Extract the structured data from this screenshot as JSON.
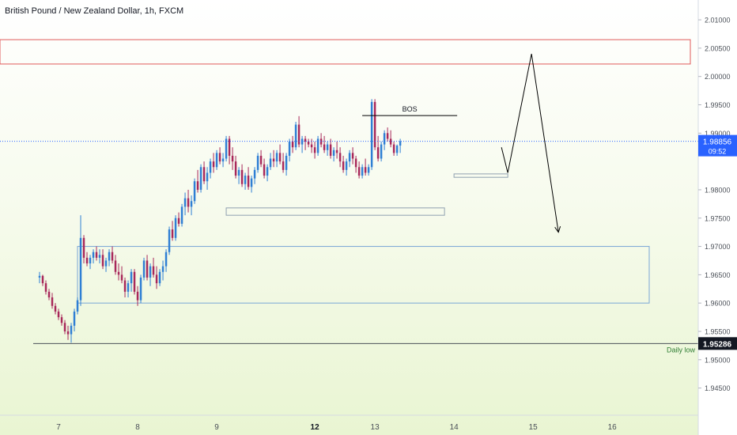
{
  "chart_title": "British Pound / New Zealand Dollar, 1h, FXCM",
  "chart_data": {
    "type": "candlestick",
    "symbol": "British Pound / New Zealand Dollar",
    "interval": "1h",
    "source": "FXCM",
    "ylim": [
      1.9402,
      2.0135
    ],
    "y_ticks": [
      {
        "value": 2.01,
        "label": "2.01000"
      },
      {
        "value": 2.005,
        "label": "2.00500"
      },
      {
        "value": 2.0,
        "label": "2.00000"
      },
      {
        "value": 1.995,
        "label": "1.99500"
      },
      {
        "value": 1.99,
        "label": "1.99000"
      },
      {
        "value": 1.98,
        "label": "1.98000"
      },
      {
        "value": 1.975,
        "label": "1.97500"
      },
      {
        "value": 1.97,
        "label": "1.97000"
      },
      {
        "value": 1.965,
        "label": "1.96500"
      },
      {
        "value": 1.96,
        "label": "1.96000"
      },
      {
        "value": 1.955,
        "label": "1.95500"
      },
      {
        "value": 1.95,
        "label": "1.95000"
      },
      {
        "value": 1.945,
        "label": "1.94500"
      }
    ],
    "x_ticks": [
      {
        "t": 6.0,
        "label": "7",
        "bold": false
      },
      {
        "t": 31.0,
        "label": "8",
        "bold": false
      },
      {
        "t": 56.0,
        "label": "9",
        "bold": false
      },
      {
        "t": 87.0,
        "label": "12",
        "bold": true
      },
      {
        "t": 106.0,
        "label": "13",
        "bold": false
      },
      {
        "t": 131.0,
        "label": "14",
        "bold": false
      },
      {
        "t": 156.0,
        "label": "15",
        "bold": false
      },
      {
        "t": 181.0,
        "label": "16",
        "bold": false
      }
    ],
    "x_range": [
      -12.5,
      208.2
    ],
    "current_price": {
      "value": 1.98856,
      "label": "1.98856",
      "countdown": "09:52",
      "color": "#2962ff"
    },
    "daily_low": {
      "value": 1.95286,
      "label": "1.95286",
      "text": "Daily low"
    },
    "bos": {
      "label": "BOS",
      "t_start": 102.0,
      "t_end": 132.0,
      "price": 1.9931
    },
    "up_color": "#2f7fd4",
    "down_color": "#a8285a",
    "zones": [
      {
        "kind": "supply",
        "t_start": -12.5,
        "t_end": 205.7,
        "top": 2.0065,
        "bottom": 2.0022,
        "color": "#e05a5a"
      },
      {
        "kind": "demand",
        "t_start": 12.0,
        "t_end": 192.7,
        "top": 1.97,
        "bottom": 1.96,
        "color": "#7aa6d6"
      },
      {
        "kind": "demand",
        "t_start": 59.0,
        "t_end": 128.0,
        "top": 1.9768,
        "bottom": 1.9755,
        "color": "#8fa0b0"
      },
      {
        "kind": "demand",
        "t_start": 131.0,
        "t_end": 148.0,
        "top": 1.9828,
        "bottom": 1.9822,
        "color": "#8fa0b0"
      }
    ],
    "projection": [
      {
        "t": 146.0,
        "price": 1.9875
      },
      {
        "t": 148.0,
        "price": 1.983
      },
      {
        "t": 155.5,
        "price": 2.004
      },
      {
        "t": 164.0,
        "price": 1.9725
      }
    ],
    "candles": [
      [
        1.9645,
        1.9655,
        1.9635,
        1.9648
      ],
      [
        1.9648,
        1.965,
        1.963,
        1.9635
      ],
      [
        1.9635,
        1.964,
        1.9615,
        1.962
      ],
      [
        1.962,
        1.9625,
        1.9605,
        1.961
      ],
      [
        1.961,
        1.9618,
        1.959,
        1.9595
      ],
      [
        1.9595,
        1.96,
        1.958,
        1.9585
      ],
      [
        1.9585,
        1.959,
        1.957,
        1.9575
      ],
      [
        1.9575,
        1.958,
        1.956,
        1.9565
      ],
      [
        1.9565,
        1.957,
        1.9545,
        1.955
      ],
      [
        1.955,
        1.956,
        1.9535,
        1.9545
      ],
      [
        1.9545,
        1.9565,
        1.953,
        1.956
      ],
      [
        1.956,
        1.959,
        1.955,
        1.9585
      ],
      [
        1.9585,
        1.961,
        1.958,
        1.9605
      ],
      [
        1.9605,
        1.9755,
        1.9595,
        1.9715
      ],
      [
        1.9715,
        1.972,
        1.967,
        1.968
      ],
      [
        1.968,
        1.969,
        1.9665,
        1.967
      ],
      [
        1.967,
        1.9685,
        1.966,
        1.968
      ],
      [
        1.968,
        1.9695,
        1.967,
        1.969
      ],
      [
        1.969,
        1.97,
        1.9675,
        1.968
      ],
      [
        1.968,
        1.9695,
        1.967,
        1.9685
      ],
      [
        1.9685,
        1.9695,
        1.966,
        1.9665
      ],
      [
        1.9665,
        1.968,
        1.9655,
        1.9675
      ],
      [
        1.9675,
        1.9695,
        1.9665,
        1.969
      ],
      [
        1.969,
        1.97,
        1.967,
        1.9675
      ],
      [
        1.9675,
        1.9685,
        1.965,
        1.9655
      ],
      [
        1.9655,
        1.967,
        1.964,
        1.965
      ],
      [
        1.965,
        1.9665,
        1.9635,
        1.964
      ],
      [
        1.964,
        1.9645,
        1.961,
        1.962
      ],
      [
        1.962,
        1.964,
        1.961,
        1.9635
      ],
      [
        1.9635,
        1.966,
        1.962,
        1.9655
      ],
      [
        1.9655,
        1.966,
        1.9615,
        1.962
      ],
      [
        1.962,
        1.963,
        1.9595,
        1.9605
      ],
      [
        1.9605,
        1.965,
        1.96,
        1.9645
      ],
      [
        1.9645,
        1.968,
        1.964,
        1.9675
      ],
      [
        1.9675,
        1.9685,
        1.964,
        1.9645
      ],
      [
        1.9645,
        1.967,
        1.963,
        1.9665
      ],
      [
        1.9665,
        1.968,
        1.9645,
        1.965
      ],
      [
        1.965,
        1.9665,
        1.9625,
        1.9635
      ],
      [
        1.9635,
        1.966,
        1.963,
        1.9655
      ],
      [
        1.9655,
        1.9675,
        1.964,
        1.9665
      ],
      [
        1.9665,
        1.9695,
        1.9655,
        1.969
      ],
      [
        1.969,
        1.9735,
        1.9685,
        1.973
      ],
      [
        1.973,
        1.9745,
        1.971,
        1.9715
      ],
      [
        1.9715,
        1.9755,
        1.971,
        1.975
      ],
      [
        1.975,
        1.976,
        1.9735,
        1.974
      ],
      [
        1.974,
        1.9775,
        1.9735,
        1.977
      ],
      [
        1.977,
        1.9795,
        1.9755,
        1.9785
      ],
      [
        1.9785,
        1.98,
        1.976,
        1.977
      ],
      [
        1.977,
        1.979,
        1.9755,
        1.978
      ],
      [
        1.978,
        1.982,
        1.9775,
        1.9815
      ],
      [
        1.9815,
        1.9835,
        1.9795,
        1.98
      ],
      [
        1.98,
        1.9845,
        1.9795,
        1.984
      ],
      [
        1.984,
        1.985,
        1.981,
        1.9815
      ],
      [
        1.9815,
        1.984,
        1.98,
        1.983
      ],
      [
        1.983,
        1.9855,
        1.982,
        1.985
      ],
      [
        1.985,
        1.9865,
        1.983,
        1.984
      ],
      [
        1.984,
        1.987,
        1.9835,
        1.9865
      ],
      [
        1.9865,
        1.9875,
        1.9845,
        1.985
      ],
      [
        1.985,
        1.9865,
        1.984,
        1.9855
      ],
      [
        1.9855,
        1.9895,
        1.985,
        1.989
      ],
      [
        1.989,
        1.9895,
        1.9845,
        1.986
      ],
      [
        1.986,
        1.9875,
        1.9835,
        1.985
      ],
      [
        1.985,
        1.986,
        1.982,
        1.9825
      ],
      [
        1.9825,
        1.984,
        1.981,
        1.9835
      ],
      [
        1.9835,
        1.9845,
        1.9805,
        1.981
      ],
      [
        1.981,
        1.983,
        1.98,
        1.9825
      ],
      [
        1.9825,
        1.984,
        1.98,
        1.9805
      ],
      [
        1.9805,
        1.9825,
        1.9795,
        1.982
      ],
      [
        1.982,
        1.984,
        1.981,
        1.9835
      ],
      [
        1.9835,
        1.9865,
        1.983,
        1.986
      ],
      [
        1.986,
        1.987,
        1.984,
        1.9845
      ],
      [
        1.9845,
        1.9855,
        1.982,
        1.9825
      ],
      [
        1.9825,
        1.9845,
        1.9815,
        1.984
      ],
      [
        1.984,
        1.9865,
        1.9835,
        1.9855
      ],
      [
        1.9855,
        1.987,
        1.984,
        1.985
      ],
      [
        1.985,
        1.987,
        1.984,
        1.9865
      ],
      [
        1.9865,
        1.988,
        1.9845,
        1.985
      ],
      [
        1.985,
        1.9865,
        1.983,
        1.9835
      ],
      [
        1.9835,
        1.9865,
        1.9825,
        1.986
      ],
      [
        1.986,
        1.989,
        1.985,
        1.9885
      ],
      [
        1.9885,
        1.9895,
        1.9865,
        1.9875
      ],
      [
        1.9875,
        1.992,
        1.987,
        1.9915
      ],
      [
        1.9915,
        1.993,
        1.9875,
        1.988
      ],
      [
        1.988,
        1.9895,
        1.9865,
        1.989
      ],
      [
        1.989,
        1.9895,
        1.987,
        1.9885
      ],
      [
        1.9885,
        1.989,
        1.9875,
        1.988
      ],
      [
        1.988,
        1.989,
        1.9865,
        1.9875
      ],
      [
        1.9875,
        1.9885,
        1.9855,
        1.9865
      ],
      [
        1.9865,
        1.9895,
        1.986,
        1.989
      ],
      [
        1.989,
        1.99,
        1.9875,
        1.988
      ],
      [
        1.988,
        1.9895,
        1.9865,
        1.987
      ],
      [
        1.987,
        1.9885,
        1.986,
        1.988
      ],
      [
        1.988,
        1.989,
        1.9855,
        1.986
      ],
      [
        1.986,
        1.9875,
        1.985,
        1.987
      ],
      [
        1.987,
        1.9885,
        1.9855,
        1.9865
      ],
      [
        1.9865,
        1.9875,
        1.984,
        1.985
      ],
      [
        1.985,
        1.986,
        1.983,
        1.9835
      ],
      [
        1.9835,
        1.9855,
        1.9825,
        1.985
      ],
      [
        1.985,
        1.987,
        1.984,
        1.9865
      ],
      [
        1.9865,
        1.9875,
        1.9845,
        1.9855
      ],
      [
        1.9855,
        1.986,
        1.983,
        1.984
      ],
      [
        1.984,
        1.985,
        1.982,
        1.9825
      ],
      [
        1.9825,
        1.9845,
        1.982,
        1.984
      ],
      [
        1.984,
        1.9855,
        1.9825,
        1.983
      ],
      [
        1.983,
        1.9845,
        1.9825,
        1.984
      ],
      [
        1.984,
        1.996,
        1.9835,
        1.9955
      ],
      [
        1.9955,
        1.996,
        1.987,
        1.9875
      ],
      [
        1.9875,
        1.9895,
        1.985,
        1.9855
      ],
      [
        1.9855,
        1.9885,
        1.985,
        1.988
      ],
      [
        1.988,
        1.9905,
        1.987,
        1.99
      ],
      [
        1.99,
        1.991,
        1.9885,
        1.989
      ],
      [
        1.989,
        1.9905,
        1.9875,
        1.988
      ],
      [
        1.988,
        1.9885,
        1.986,
        1.9865
      ],
      [
        1.9865,
        1.988,
        1.986,
        1.9878
      ],
      [
        1.9878,
        1.989,
        1.9865,
        1.98856
      ]
    ]
  }
}
